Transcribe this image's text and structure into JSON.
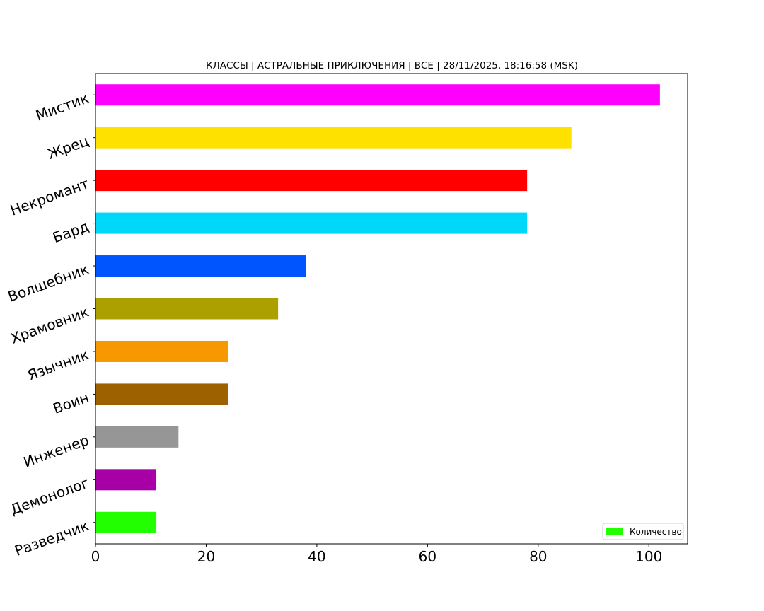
{
  "chart_data": {
    "type": "bar",
    "orientation": "horizontal",
    "title": "КЛАССЫ | АСТРАЛЬНЫЕ ПРИКЛЮЧЕНИЯ | ВСЕ | 28/11/2025, 18:16:58 (MSK)",
    "xlabel": "",
    "ylabel": "",
    "xlim": [
      0,
      107
    ],
    "x_ticks": [
      0,
      20,
      40,
      60,
      80,
      100
    ],
    "grid": false,
    "legend": {
      "placement": "bottom-right",
      "entries": [
        {
          "label": "Количество",
          "color": "#22ff00"
        }
      ]
    },
    "categories": [
      "Мистик",
      "Жрец",
      "Некромант",
      "Бард",
      "Волшебник",
      "Храмовник",
      "Язычник",
      "Воин",
      "Инженер",
      "Демонолог",
      "Разведчик"
    ],
    "values": [
      102,
      86,
      78,
      78,
      38,
      33,
      24,
      24,
      15,
      11,
      11
    ],
    "colors": [
      "#ff00ff",
      "#ffe100",
      "#ff0000",
      "#00d8fa",
      "#0055ff",
      "#aca000",
      "#f79800",
      "#9e6100",
      "#969696",
      "#a600a6",
      "#22ff00"
    ]
  }
}
